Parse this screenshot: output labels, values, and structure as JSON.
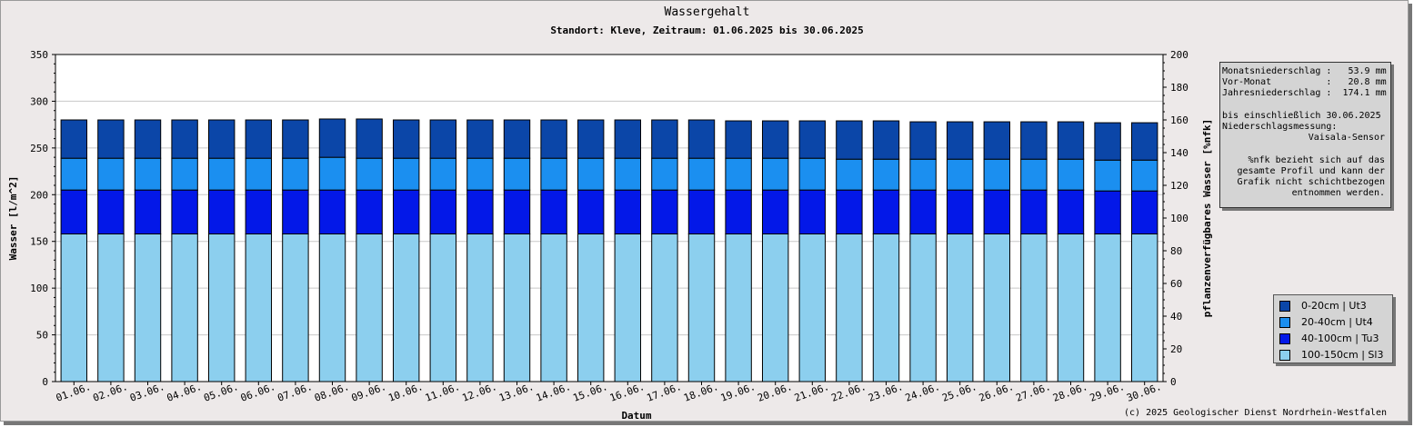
{
  "header": {
    "title": "Wassergehalt",
    "subtitle": "Standort: Kleve, Zeitraum: 01.06.2025 bis 30.06.2025"
  },
  "info": {
    "lines": [
      "Monatsniederschlag :   53.9 mm",
      "Vor-Monat          :   20.8 mm",
      "Jahresniederschlag :  174.1 mm",
      "",
      "bis einschließlich 30.06.2025",
      "Niederschlagsmessung:"
    ],
    "sensor": "Vaisala-Sensor",
    "note_lines": [
      "%nfk bezieht sich auf das",
      "gesamte Profil und kann der",
      "Grafik nicht schichtbezogen",
      "entnommen werden."
    ]
  },
  "footer": {
    "copyright": "(c) 2025 Geologischer Dienst Nordrhein-Westfalen"
  },
  "colors": {
    "layer_0_20": "#0b46a8",
    "layer_20_40": "#1b8ff0",
    "layer_40_100": "#0318e8",
    "layer_100_150": "#8ccfee",
    "background": "#ede9e9"
  },
  "chart_data": {
    "type": "bar",
    "stacked": true,
    "title": "Wassergehalt",
    "subtitle": "Standort: Kleve, Zeitraum: 01.06.2025 bis 30.06.2025",
    "xlabel": "Datum",
    "ylabel": "Wasser [l/m^2]",
    "y2label": "pflanzenverfügbares Wasser [%nfk]",
    "ylim": [
      0,
      350
    ],
    "y2lim": [
      0,
      200
    ],
    "yticks": [
      0,
      50,
      100,
      150,
      200,
      250,
      300,
      350
    ],
    "y2ticks": [
      0,
      20,
      40,
      60,
      80,
      100,
      120,
      140,
      160,
      180,
      200
    ],
    "grid": true,
    "legend_position": "bottom-right",
    "categories": [
      "01.06.",
      "02.06.",
      "03.06.",
      "04.06.",
      "05.06.",
      "06.06.",
      "07.06.",
      "08.06.",
      "09.06.",
      "10.06.",
      "11.06.",
      "12.06.",
      "13.06.",
      "14.06.",
      "15.06.",
      "16.06.",
      "17.06.",
      "18.06.",
      "19.06.",
      "20.06.",
      "21.06.",
      "22.06.",
      "23.06.",
      "24.06.",
      "25.06.",
      "26.06.",
      "27.06.",
      "28.06.",
      "29.06.",
      "30.06."
    ],
    "series": [
      {
        "name": "100-150cm | Sl3",
        "color": "#8ccfee",
        "values": [
          158,
          158,
          158,
          158,
          158,
          158,
          158,
          158,
          158,
          158,
          158,
          158,
          158,
          158,
          158,
          158,
          158,
          158,
          158,
          158,
          158,
          158,
          158,
          158,
          158,
          158,
          158,
          158,
          158,
          158
        ]
      },
      {
        "name": "40-100cm | Tu3",
        "color": "#0318e8",
        "values": [
          47,
          47,
          47,
          47,
          47,
          47,
          47,
          47,
          47,
          47,
          47,
          47,
          47,
          47,
          47,
          47,
          47,
          47,
          47,
          47,
          47,
          47,
          47,
          47,
          47,
          47,
          47,
          47,
          46,
          46
        ]
      },
      {
        "name": "20-40cm | Ut4",
        "color": "#1b8ff0",
        "values": [
          34,
          34,
          34,
          34,
          34,
          34,
          34,
          35,
          34,
          34,
          34,
          34,
          34,
          34,
          34,
          34,
          34,
          34,
          34,
          34,
          34,
          33,
          33,
          33,
          33,
          33,
          33,
          33,
          33,
          33
        ]
      },
      {
        "name": "0-20cm | Ut3",
        "color": "#0b46a8",
        "values": [
          41,
          41,
          41,
          41,
          41,
          41,
          41,
          41,
          42,
          41,
          41,
          41,
          41,
          41,
          41,
          41,
          41,
          41,
          40,
          40,
          40,
          41,
          41,
          40,
          40,
          40,
          40,
          40,
          40,
          40
        ]
      }
    ]
  }
}
